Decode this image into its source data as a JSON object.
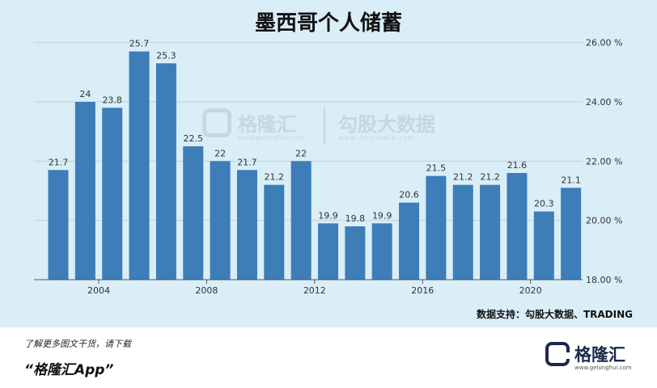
{
  "chart_data": {
    "type": "bar",
    "title": "墨西哥个人储蓄",
    "years": [
      2003,
      2004,
      2005,
      2006,
      2007,
      2008,
      2009,
      2010,
      2011,
      2012,
      2013,
      2014,
      2015,
      2016,
      2017,
      2018,
      2019,
      2020,
      2021,
      2022
    ],
    "values": [
      21.7,
      24,
      23.8,
      25.7,
      25.3,
      22.5,
      22,
      21.7,
      21.2,
      22,
      19.9,
      19.8,
      19.9,
      20.6,
      21.5,
      21.2,
      21.2,
      21.6,
      20.3,
      21.1
    ],
    "value_labels": [
      "21.7",
      "24",
      "23.8",
      "25.7",
      "25.3",
      "22.5",
      "22",
      "21.7",
      "21.2",
      "22",
      "19.9",
      "19.8",
      "19.9",
      "20.6",
      "21.5",
      "21.2",
      "21.2",
      "21.6",
      "20.3",
      "21.1"
    ],
    "x_ticks": [
      {
        "year": 2004,
        "label": "2004"
      },
      {
        "year": 2008,
        "label": "2008"
      },
      {
        "year": 2012,
        "label": "2012"
      },
      {
        "year": 2016,
        "label": "2016"
      },
      {
        "year": 2020,
        "label": "2020"
      }
    ],
    "y_ticks": [
      {
        "value": 18,
        "label": "18.00 %"
      },
      {
        "value": 20,
        "label": "20.00 %"
      },
      {
        "value": 22,
        "label": "22.00 %"
      },
      {
        "value": 24,
        "label": "24.00 %"
      },
      {
        "value": 26,
        "label": "26.00 %"
      }
    ],
    "ylim": [
      18,
      26.4
    ],
    "y_axis_position": "right",
    "grid": true,
    "bar_color": "#3d7db8"
  },
  "source": "数据支持：勾股大数据、TRADING",
  "watermark": {
    "name1": "格隆汇",
    "sub1": "www.gelonghui.com",
    "name2": "勾股大数据",
    "sub2": "www.gogudata.com"
  },
  "footer": {
    "line1": "了解更多图文干货，请下载",
    "line2": "“格隆汇App”",
    "brand_name": "格隆汇",
    "brand_url": "www.gelonghui.com"
  }
}
